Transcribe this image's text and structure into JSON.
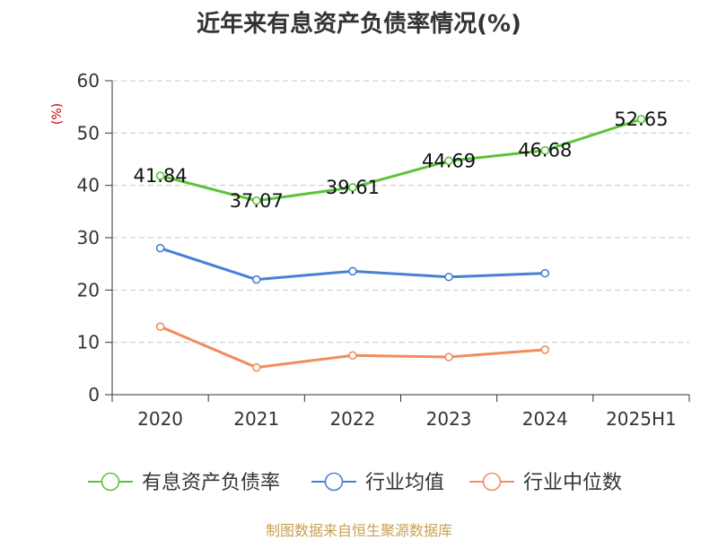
{
  "chart_data": {
    "type": "line",
    "title": "近年来有息资产负债率情况(%)",
    "ylabel": "(%)",
    "xlabel": "",
    "categories": [
      "2020",
      "2021",
      "2022",
      "2023",
      "2024",
      "2025H1"
    ],
    "ylim": [
      0,
      60
    ],
    "yticks": [
      "0",
      "10",
      "20",
      "30",
      "40",
      "50",
      "60"
    ],
    "grid": true,
    "legend_position": "bottom",
    "series": [
      {
        "name": "有息资产负债率",
        "color": "#5cc33a",
        "values": [
          41.84,
          37.07,
          39.61,
          44.69,
          46.68,
          52.65
        ],
        "labels": [
          "41.84",
          "37.07",
          "39.61",
          "44.69",
          "46.68",
          "52.65"
        ]
      },
      {
        "name": "行业均值",
        "color": "#4a7fd6",
        "values": [
          28.0,
          22.0,
          23.6,
          22.5,
          23.2,
          null
        ]
      },
      {
        "name": "行业中位数",
        "color": "#f28c5a",
        "values": [
          13.0,
          5.2,
          7.5,
          7.2,
          8.6,
          null
        ]
      }
    ]
  },
  "source": "制图数据来自恒生聚源数据库"
}
